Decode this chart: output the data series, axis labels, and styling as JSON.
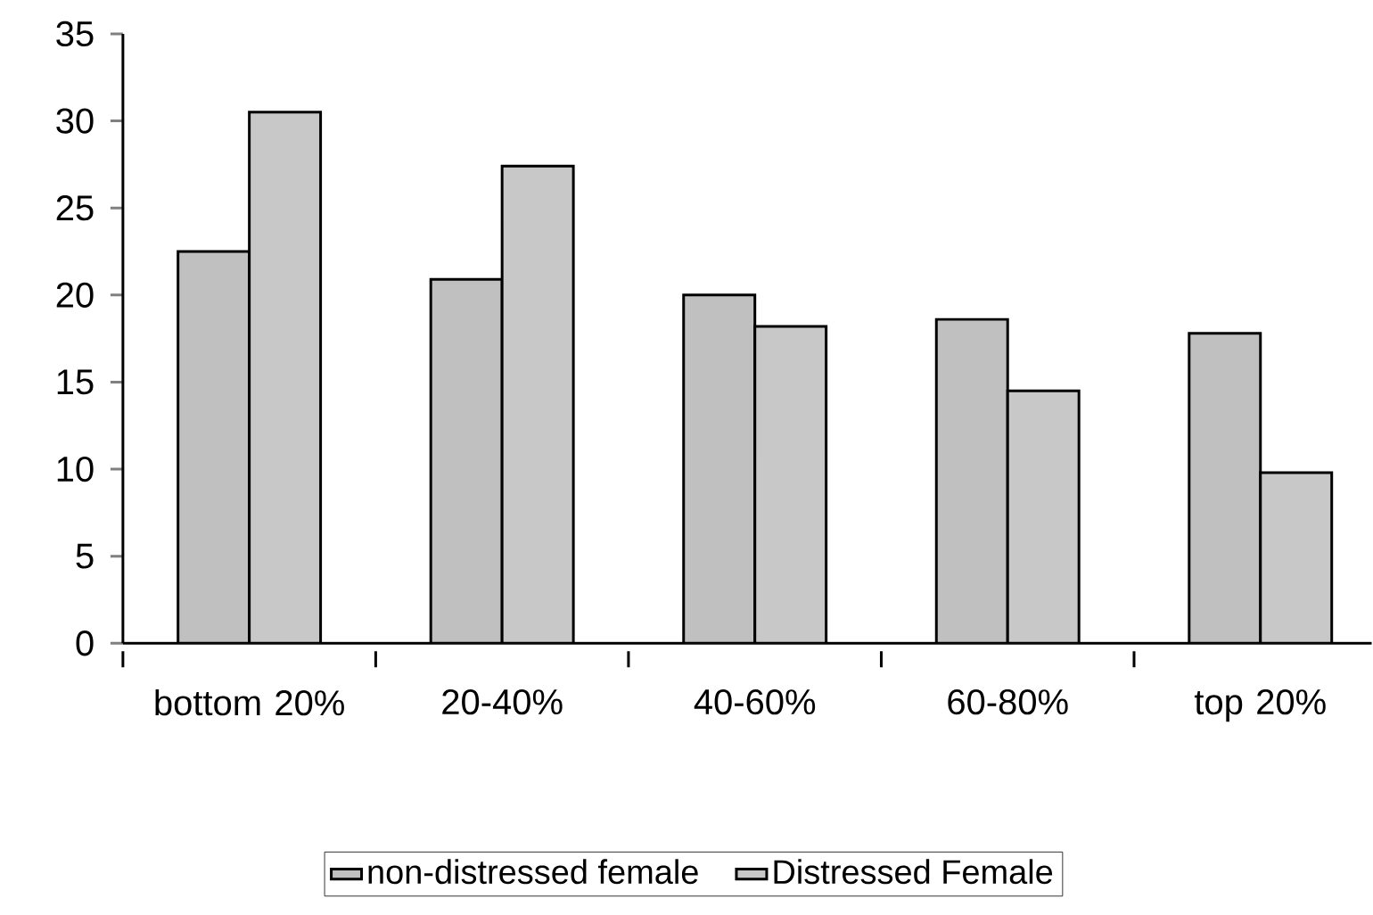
{
  "chart_data": {
    "type": "bar",
    "categories": [
      "bottom 20%",
      "20-40%",
      "40-60%",
      "60-80%",
      "top 20%"
    ],
    "series": [
      {
        "name": "non-distressed female",
        "color": "#c0c0c0",
        "values": [
          22.5,
          20.9,
          20.0,
          18.6,
          17.8
        ]
      },
      {
        "name": "Distressed Female",
        "color": "#c8c8c8",
        "values": [
          30.5,
          27.4,
          18.2,
          14.5,
          9.8
        ]
      }
    ],
    "ylim": [
      0,
      35
    ],
    "yticks": [
      0,
      5,
      10,
      15,
      20,
      25,
      30,
      35
    ],
    "grid": false,
    "legend": "bottom"
  }
}
